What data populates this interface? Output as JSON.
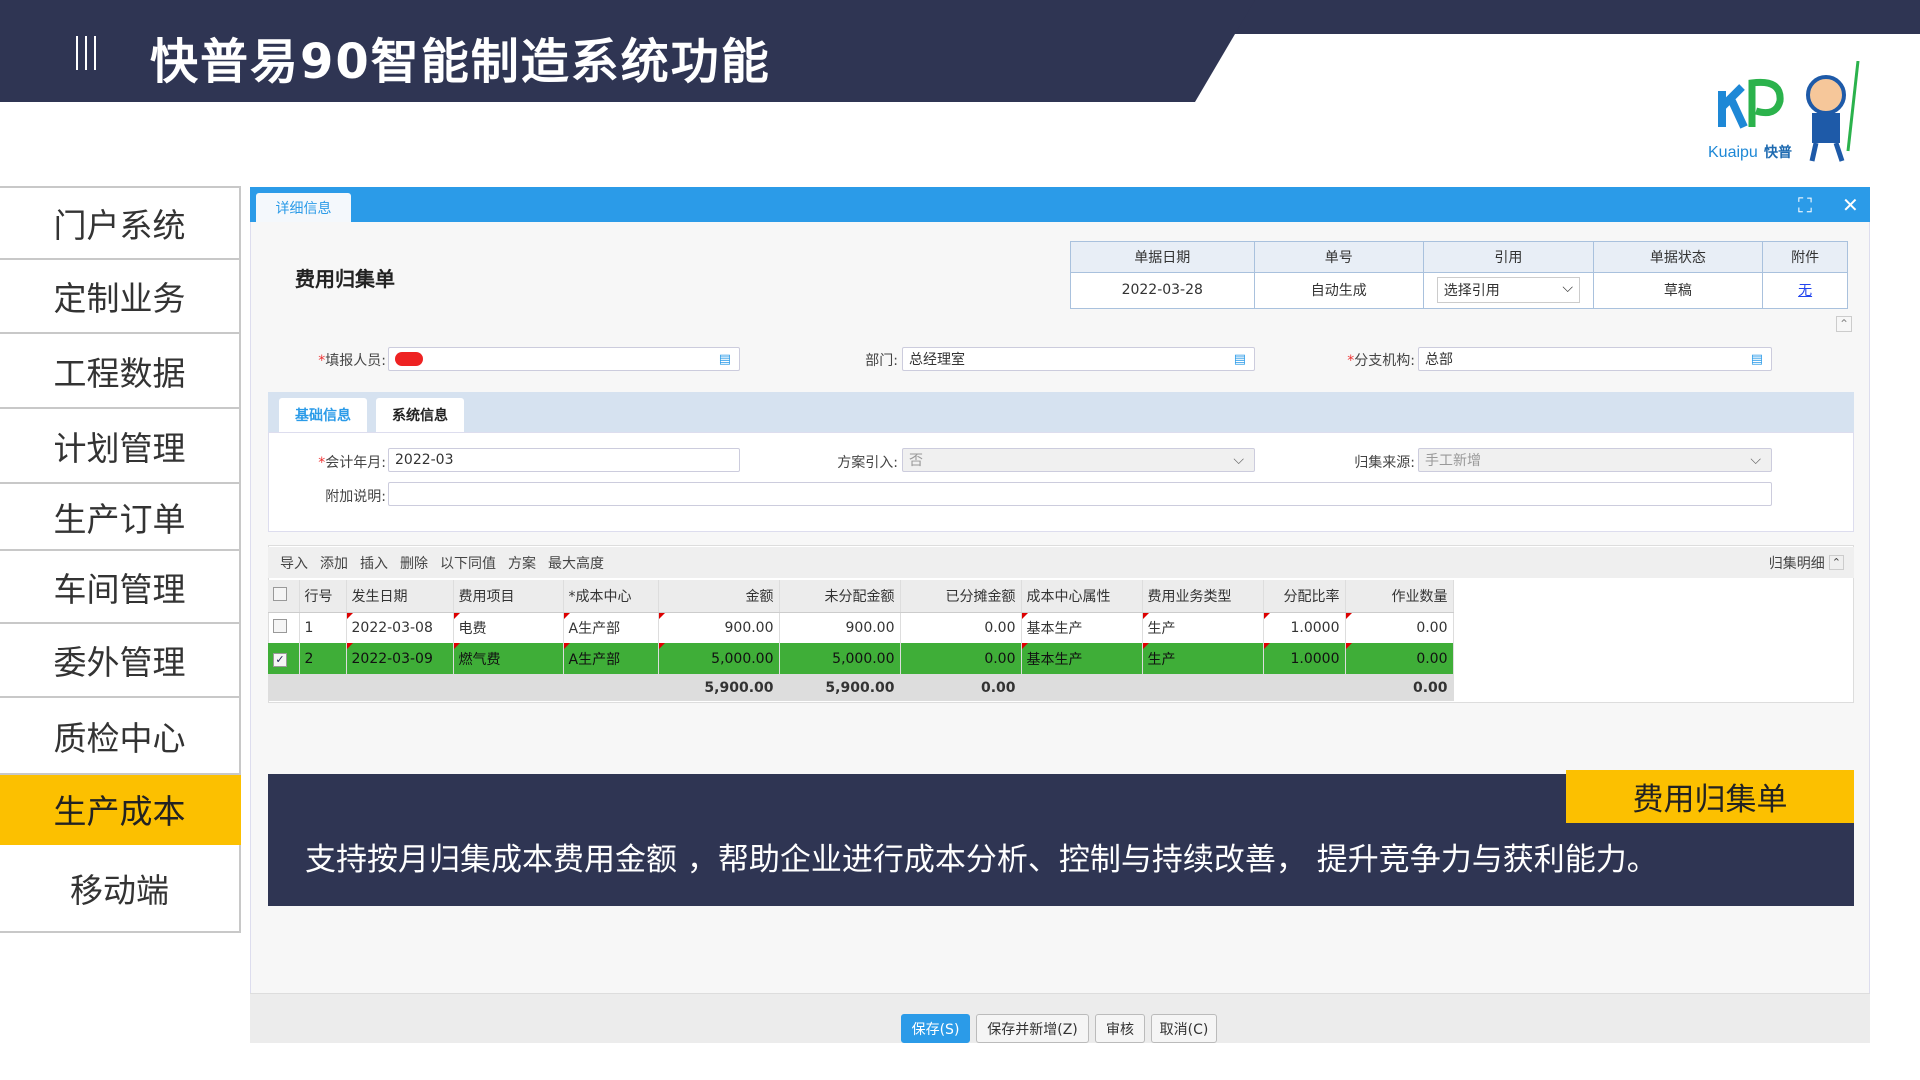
{
  "header": {
    "title": "快普易90智能制造系统功能",
    "logo_text": "Kuaipu 快普"
  },
  "sidebar": {
    "items": [
      {
        "label": "门户系统"
      },
      {
        "label": "定制业务"
      },
      {
        "label": "工程数据"
      },
      {
        "label": "计划管理"
      },
      {
        "label": "生产订单"
      },
      {
        "label": "车间管理"
      },
      {
        "label": "委外管理"
      },
      {
        "label": "质检中心"
      },
      {
        "label": "生产成本",
        "active": true
      },
      {
        "label": "移动端"
      }
    ]
  },
  "window": {
    "tab": "详细信息",
    "maximize_icon": "expand-icon",
    "close_icon": "close-icon"
  },
  "form": {
    "title": "费用归集单",
    "summary": {
      "headers": [
        "单据日期",
        "单号",
        "引用",
        "单据状态",
        "附件"
      ],
      "values": {
        "date": "2022-03-28",
        "number": "自动生成",
        "ref": "选择引用",
        "status": "草稿",
        "attach": "无"
      }
    },
    "reporter_label": "填报人员:",
    "reporter_value": "",
    "dept_label": "部门:",
    "dept_value": "总经理室",
    "branch_label": "分支机构:",
    "branch_value": "总部",
    "tabs": [
      "基础信息",
      "系统信息"
    ],
    "period_label": "会计年月:",
    "period_value": "2022-03",
    "plan_label": "方案引入:",
    "plan_value": "否",
    "source_label": "归集来源:",
    "source_value": "手工新增",
    "note_label": "附加说明:",
    "note_value": ""
  },
  "grid": {
    "toolbar": [
      "导入",
      "添加",
      "插入",
      "删除",
      "以下同值",
      "方案",
      "最大高度"
    ],
    "right_label": "归集明细",
    "columns": [
      "",
      "行号",
      "发生日期",
      "费用项目",
      "*成本中心",
      "金额",
      "未分配金额",
      "已分摊金额",
      "成本中心属性",
      "费用业务类型",
      "分配比率",
      "作业数量"
    ],
    "rows": [
      {
        "checked": false,
        "cells": [
          "1",
          "2022-03-08",
          "电费",
          "A生产部",
          "900.00",
          "900.00",
          "0.00",
          "基本生产",
          "生产",
          "1.0000",
          "0.00"
        ]
      },
      {
        "checked": true,
        "cells": [
          "2",
          "2022-03-09",
          "燃气费",
          "A生产部",
          "5,000.00",
          "5,000.00",
          "0.00",
          "基本生产",
          "生产",
          "1.0000",
          "0.00"
        ]
      }
    ],
    "totals": [
      "",
      "",
      "",
      "",
      "5,900.00",
      "5,900.00",
      "0.00",
      "",
      "",
      "",
      "0.00"
    ]
  },
  "footer": {
    "buttons": [
      "保存(S)",
      "保存并新增(Z)",
      "审核",
      "取消(C)"
    ]
  },
  "caption": {
    "tag": "费用归集单",
    "text": "支持按月归集成本费用金额 ，帮助企业进行成本分析、控制与持续改善， 提升竞争力与获利能力。"
  },
  "colors": {
    "navy": "#2f3553",
    "accent": "#fcc000",
    "blue": "#2b9be8",
    "selected_row": "#3fae38"
  }
}
